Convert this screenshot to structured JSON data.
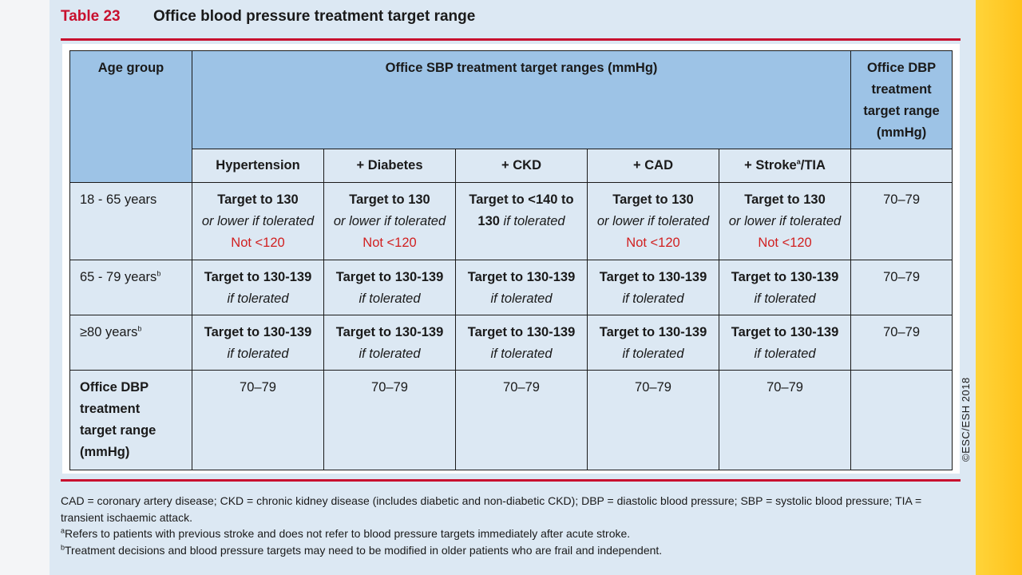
{
  "title": {
    "number": "Table 23",
    "text": "Office blood pressure treatment target range"
  },
  "table": {
    "header": {
      "age_group": "Age group",
      "sbp": "Office SBP treatment target ranges (mmHg)",
      "dbp": [
        "Office DBP",
        "treatment",
        "target range",
        "(mmHg)"
      ]
    },
    "subheaders": [
      "Hypertension",
      "+ Diabetes",
      "+ CKD",
      "+ CAD",
      "+ Stroke",
      "/TIA"
    ],
    "subheader_sup": "a",
    "rows": [
      {
        "age": "18 - 65 years",
        "cells": [
          {
            "main": "Target to 130",
            "cond": "or lower if tolerated",
            "warn": "Not <120"
          },
          {
            "main": "Target to 130",
            "cond": "or lower if tolerated",
            "warn": "Not <120"
          },
          {
            "main": "Target to <140 to",
            "main2": "130",
            "cond": " if tolerated"
          },
          {
            "main": "Target to 130",
            "cond": "or lower if tolerated",
            "warn": "Not <120"
          },
          {
            "main": "Target to 130",
            "cond": "or lower if tolerated",
            "warn": "Not <120"
          }
        ],
        "dbp": "70–79"
      },
      {
        "age": "65 - 79 years",
        "age_sup": "b",
        "cells": [
          {
            "main": "Target to 130-139",
            "cond": "if tolerated"
          },
          {
            "main": "Target to 130-139",
            "cond": "if tolerated"
          },
          {
            "main": "Target to 130-139",
            "cond": "if tolerated"
          },
          {
            "main": "Target to 130-139",
            "cond": "if tolerated"
          },
          {
            "main": "Target to 130-139",
            "cond": "if tolerated"
          }
        ],
        "dbp": "70–79"
      },
      {
        "age": "≥80 years",
        "age_sup": "b",
        "cells": [
          {
            "main": "Target to 130-139",
            "cond": "if tolerated"
          },
          {
            "main": "Target to 130-139",
            "cond": "if tolerated"
          },
          {
            "main": "Target to 130-139",
            "cond": "if tolerated"
          },
          {
            "main": "Target to 130-139",
            "cond": "if tolerated"
          },
          {
            "main": "Target to 130-139",
            "cond": "if tolerated"
          }
        ],
        "dbp": "70–79"
      }
    ],
    "dbp_row": {
      "label": [
        "Office DBP",
        "treatment",
        "target range",
        "(mmHg)"
      ],
      "values": [
        "70–79",
        "70–79",
        "70–79",
        "70–79",
        "70–79"
      ]
    }
  },
  "copyright": "©ESC/ESH 2018",
  "footnotes": {
    "abbrev": "CAD = coronary artery disease; CKD = chronic kidney disease (includes diabetic and non-diabetic CKD); DBP = diastolic blood pressure; SBP = systolic blood pressure; TIA = transient ischaemic attack.",
    "a_mark": "a",
    "a": "Refers to patients with previous stroke and does not refer to blood pressure targets immediately after acute stroke.",
    "b_mark": "b",
    "b": "Treatment decisions and blood pressure targets may need to be modified in older patients who are frail and independent."
  },
  "colors": {
    "accent_red": "#c8102e",
    "header_blue": "#9dc3e6",
    "panel_blue": "#dce8f3",
    "side_yellow": "#ffc21a"
  }
}
